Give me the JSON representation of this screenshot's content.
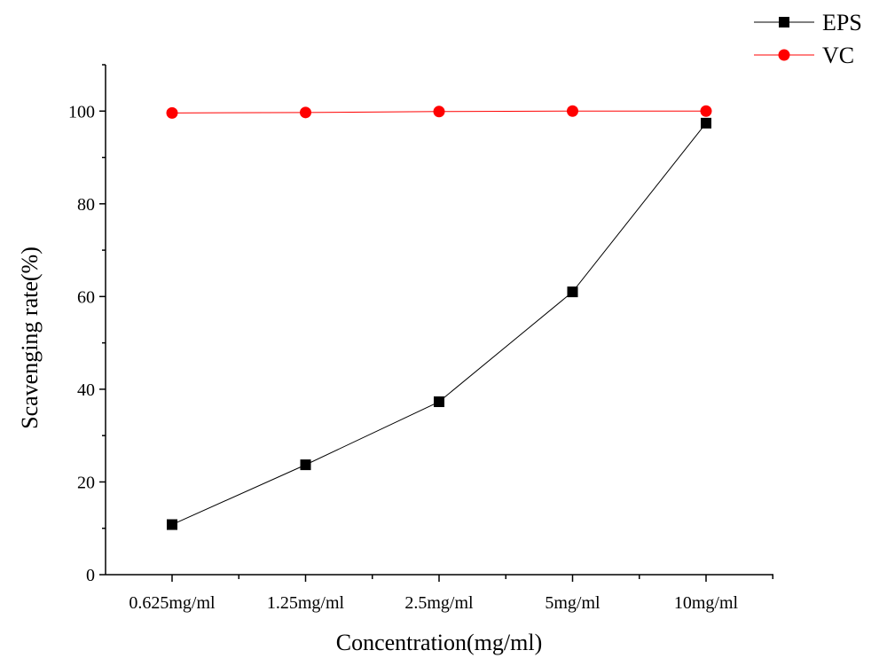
{
  "chart_data": {
    "type": "line",
    "title": "",
    "xlabel": "Concentration(mg/ml)",
    "ylabel": "Scavenging rate(%)",
    "categories": [
      "0.625mg/ml",
      "1.25mg/ml",
      "2.5mg/ml",
      "5mg/ml",
      "10mg/ml"
    ],
    "ylim": [
      0,
      110
    ],
    "yticks": [
      "0",
      "20",
      "40",
      "60",
      "80",
      "100"
    ],
    "grid": false,
    "legend_position": "top-right",
    "series": [
      {
        "name": "EPS",
        "marker": "square",
        "color": "#000000",
        "values": [
          10.8,
          23.7,
          37.3,
          61.0,
          97.4
        ]
      },
      {
        "name": "VC",
        "marker": "circle",
        "color": "#ff0000",
        "values": [
          99.6,
          99.7,
          99.9,
          100.0,
          100.0
        ]
      }
    ]
  }
}
